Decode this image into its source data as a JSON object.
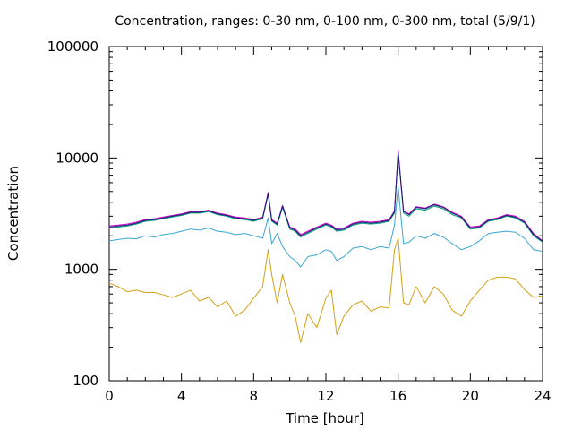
{
  "chart_data": {
    "type": "line",
    "title": "Concentration, ranges: 0-30 nm, 0-100 nm, 0-300 nm, total (5/9/1)",
    "xlabel": "Time [hour]",
    "ylabel": "Concentration",
    "xlim": [
      0,
      24
    ],
    "ylim": [
      100,
      100000
    ],
    "yscale": "log",
    "grid": false,
    "x_ticks": [
      {
        "value": 0,
        "label": "0"
      },
      {
        "value": 4,
        "label": "4"
      },
      {
        "value": 8,
        "label": "8"
      },
      {
        "value": 12,
        "label": "12"
      },
      {
        "value": 16,
        "label": "16"
      },
      {
        "value": 20,
        "label": "20"
      },
      {
        "value": 24,
        "label": "24"
      }
    ],
    "y_ticks": [
      {
        "value": 100,
        "label": "100"
      },
      {
        "value": 1000,
        "label": "1000"
      },
      {
        "value": 10000,
        "label": "10000"
      },
      {
        "value": 100000,
        "label": "100000"
      }
    ],
    "series": [
      {
        "color": "#d4a017",
        "x": [
          0,
          0.5,
          1,
          1.5,
          2,
          2.5,
          3,
          3.5,
          4,
          4.5,
          5,
          5.5,
          6,
          6.5,
          7,
          7.5,
          8,
          8.5,
          8.8,
          9,
          9.3,
          9.6,
          10,
          10.3,
          10.6,
          11,
          11.5,
          12,
          12.3,
          12.6,
          13,
          13.5,
          14,
          14.5,
          15,
          15.5,
          15.8,
          16,
          16.3,
          16.6,
          17,
          17.5,
          18,
          18.5,
          19,
          19.5,
          20,
          20.5,
          21,
          21.5,
          22,
          22.5,
          23,
          23.5,
          24
        ],
        "y": [
          750,
          700,
          630,
          650,
          620,
          620,
          590,
          560,
          600,
          650,
          520,
          560,
          460,
          520,
          380,
          430,
          550,
          700,
          1500,
          900,
          500,
          900,
          500,
          380,
          220,
          400,
          300,
          550,
          650,
          260,
          380,
          480,
          520,
          420,
          460,
          450,
          1500,
          1900,
          500,
          480,
          700,
          500,
          700,
          600,
          430,
          380,
          520,
          650,
          800,
          850,
          850,
          820,
          660,
          560,
          580
        ]
      },
      {
        "color": "#3aa7d0",
        "x": [
          0,
          0.5,
          1,
          1.5,
          2,
          2.5,
          3,
          3.5,
          4,
          4.5,
          5,
          5.5,
          6,
          6.5,
          7,
          7.5,
          8,
          8.5,
          8.8,
          9,
          9.3,
          9.6,
          10,
          10.3,
          10.6,
          11,
          11.5,
          12,
          12.3,
          12.6,
          13,
          13.5,
          14,
          14.5,
          15,
          15.5,
          15.8,
          16,
          16.3,
          16.6,
          17,
          17.5,
          18,
          18.5,
          19,
          19.5,
          20,
          20.5,
          21,
          21.5,
          22,
          22.5,
          23,
          23.5,
          24
        ],
        "y": [
          1800,
          1850,
          1900,
          1880,
          2000,
          1950,
          2050,
          2100,
          2200,
          2300,
          2250,
          2350,
          2200,
          2150,
          2050,
          2100,
          2000,
          1900,
          2900,
          1700,
          2100,
          1600,
          1300,
          1200,
          1050,
          1300,
          1350,
          1500,
          1450,
          1200,
          1300,
          1550,
          1600,
          1500,
          1600,
          1550,
          2500,
          5500,
          1700,
          1750,
          2000,
          1900,
          2100,
          1950,
          1700,
          1500,
          1600,
          1800,
          2100,
          2150,
          2200,
          2150,
          1900,
          1500,
          1450
        ]
      },
      {
        "color": "#009e73",
        "x": [
          0,
          0.5,
          1,
          1.5,
          2,
          2.5,
          3,
          3.5,
          4,
          4.5,
          5,
          5.5,
          6,
          6.5,
          7,
          7.5,
          8,
          8.5,
          8.8,
          9,
          9.3,
          9.6,
          10,
          10.3,
          10.6,
          11,
          11.5,
          12,
          12.3,
          12.6,
          13,
          13.5,
          14,
          14.5,
          15,
          15.5,
          15.8,
          16,
          16.3,
          16.6,
          17,
          17.5,
          18,
          18.5,
          19,
          19.5,
          20,
          20.5,
          21,
          21.5,
          22,
          22.5,
          23,
          23.5,
          24
        ],
        "y": [
          2350,
          2400,
          2450,
          2550,
          2700,
          2750,
          2850,
          2950,
          3050,
          3200,
          3200,
          3300,
          3100,
          3000,
          2850,
          2800,
          2700,
          2850,
          4700,
          2700,
          2500,
          3600,
          2300,
          2200,
          1950,
          2100,
          2300,
          2500,
          2400,
          2200,
          2250,
          2500,
          2600,
          2550,
          2600,
          2700,
          3200,
          11000,
          3200,
          3000,
          3500,
          3400,
          3700,
          3500,
          3100,
          2900,
          2300,
          2350,
          2700,
          2800,
          3000,
          2900,
          2600,
          2000,
          1750
        ]
      },
      {
        "color": "#cc00cc",
        "x": [
          0,
          0.5,
          1,
          1.5,
          2,
          2.5,
          3,
          3.5,
          4,
          4.5,
          5,
          5.5,
          6,
          6.5,
          7,
          7.5,
          8,
          8.5,
          8.8,
          9,
          9.3,
          9.6,
          10,
          10.3,
          10.6,
          11,
          11.5,
          12,
          12.3,
          12.6,
          13,
          13.5,
          14,
          14.5,
          15,
          15.5,
          15.8,
          16,
          16.3,
          16.6,
          17,
          17.5,
          18,
          18.5,
          19,
          19.5,
          20,
          20.5,
          21,
          21.5,
          22,
          22.5,
          23,
          23.5,
          24
        ],
        "y": [
          2450,
          2500,
          2550,
          2650,
          2800,
          2850,
          2950,
          3050,
          3150,
          3300,
          3300,
          3400,
          3200,
          3100,
          2950,
          2900,
          2800,
          2950,
          4900,
          2800,
          2600,
          3750,
          2400,
          2300,
          2050,
          2200,
          2400,
          2600,
          2500,
          2300,
          2350,
          2600,
          2700,
          2650,
          2700,
          2800,
          3350,
          11600,
          3350,
          3150,
          3650,
          3550,
          3850,
          3650,
          3250,
          3000,
          2400,
          2450,
          2800,
          2900,
          3100,
          3000,
          2700,
          2100,
          1800
        ]
      },
      {
        "color": "#1c1c7a",
        "x": [
          0,
          0.5,
          1,
          1.5,
          2,
          2.5,
          3,
          3.5,
          4,
          4.5,
          5,
          5.5,
          6,
          6.5,
          7,
          7.5,
          8,
          8.5,
          8.8,
          9,
          9.3,
          9.6,
          10,
          10.3,
          10.6,
          11,
          11.5,
          12,
          12.3,
          12.6,
          13,
          13.5,
          14,
          14.5,
          15,
          15.5,
          15.8,
          16,
          16.3,
          16.6,
          17,
          17.5,
          18,
          18.5,
          19,
          19.5,
          20,
          20.5,
          21,
          21.5,
          22,
          22.5,
          23,
          23.5,
          24
        ],
        "y": [
          2400,
          2450,
          2500,
          2600,
          2750,
          2800,
          2900,
          3000,
          3100,
          3250,
          3250,
          3350,
          3150,
          3050,
          2900,
          2850,
          2750,
          2900,
          4800,
          2750,
          2550,
          3700,
          2350,
          2250,
          2000,
          2150,
          2350,
          2550,
          2450,
          2250,
          2300,
          2550,
          2650,
          2600,
          2650,
          2750,
          3300,
          11300,
          3300,
          3100,
          3600,
          3500,
          3800,
          3600,
          3200,
          2950,
          2350,
          2400,
          2750,
          2850,
          3050,
          2950,
          2650,
          2050,
          1780
        ]
      }
    ]
  }
}
